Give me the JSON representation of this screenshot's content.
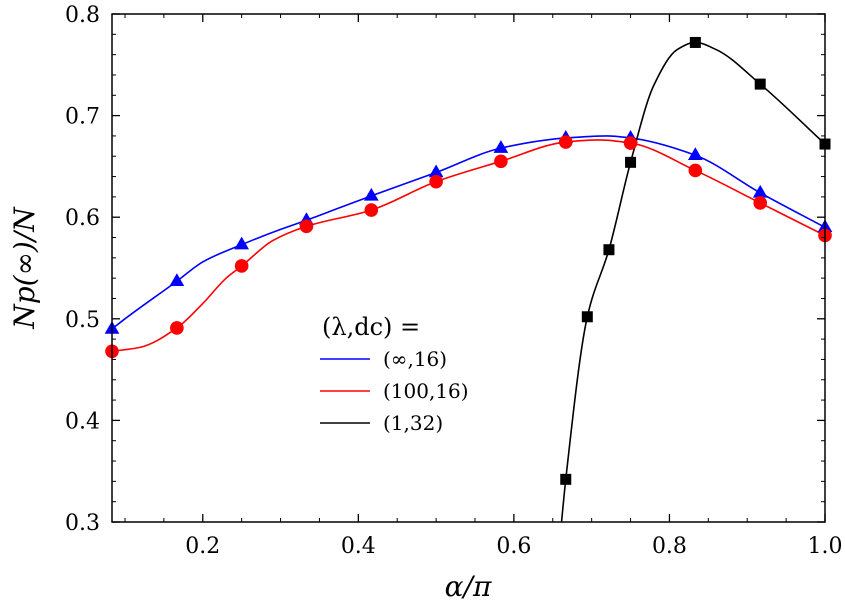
{
  "chart_data": {
    "type": "line",
    "title": "",
    "xlabel": "α/π",
    "ylabel": "Np(∞)/N",
    "xlim": [
      0.0833,
      1.0
    ],
    "ylim": [
      0.3,
      0.8
    ],
    "xticks": [
      0.2,
      0.4,
      0.6,
      0.8,
      1.0
    ],
    "xtick_labels": [
      "0.2",
      "0.4",
      "0.6",
      "0.8",
      "1.0"
    ],
    "yticks": [
      0.3,
      0.4,
      0.5,
      0.6,
      0.7,
      0.8
    ],
    "ytick_labels": [
      "0.3",
      "0.4",
      "0.5",
      "0.6",
      "0.7",
      "0.8"
    ],
    "legend": {
      "title": "(λ,dc) =",
      "placement": "center-left",
      "entries": [
        "(∞,16)",
        "(100,16)",
        "(1,32)"
      ]
    },
    "series": [
      {
        "name": "(∞,16)",
        "color": "#0000ff",
        "marker": "triangle",
        "x": [
          0.0833,
          0.1667,
          0.25,
          0.3333,
          0.4167,
          0.5,
          0.5833,
          0.6667,
          0.75,
          0.8333,
          0.9167,
          1.0
        ],
        "y": [
          0.49,
          0.537,
          0.573,
          0.597,
          0.621,
          0.644,
          0.668,
          0.678,
          0.678,
          0.661,
          0.624,
          0.59
        ],
        "curve_x": [
          0.0833,
          0.1,
          0.1667,
          0.2,
          0.25,
          0.3,
          0.3333,
          0.375,
          0.4167,
          0.5,
          0.5833,
          0.6667,
          0.72,
          0.75,
          0.8333,
          0.9167,
          1.0
        ],
        "curve_y": [
          0.49,
          0.5,
          0.537,
          0.556,
          0.573,
          0.588,
          0.597,
          0.609,
          0.621,
          0.644,
          0.668,
          0.678,
          0.68,
          0.678,
          0.661,
          0.624,
          0.59
        ]
      },
      {
        "name": "(100,16)",
        "color": "#ff0000",
        "marker": "circle",
        "x": [
          0.0833,
          0.1667,
          0.25,
          0.3333,
          0.4167,
          0.5,
          0.5833,
          0.6667,
          0.75,
          0.8333,
          0.9167,
          1.0
        ],
        "y": [
          0.468,
          0.491,
          0.552,
          0.591,
          0.607,
          0.635,
          0.655,
          0.674,
          0.673,
          0.646,
          0.614,
          0.582
        ],
        "curve_x": [
          0.0833,
          0.12,
          0.1667,
          0.2,
          0.23,
          0.25,
          0.29,
          0.3333,
          0.4167,
          0.5,
          0.5833,
          0.6667,
          0.71,
          0.75,
          0.8333,
          0.9167,
          1.0
        ],
        "curve_y": [
          0.468,
          0.472,
          0.491,
          0.515,
          0.54,
          0.552,
          0.577,
          0.591,
          0.607,
          0.635,
          0.655,
          0.674,
          0.676,
          0.673,
          0.646,
          0.614,
          0.582
        ]
      },
      {
        "name": "(1,32)",
        "color": "#000000",
        "marker": "square",
        "x": [
          0.6667,
          0.6944,
          0.7222,
          0.75,
          0.8333,
          0.9167,
          1.0
        ],
        "y": [
          0.342,
          0.502,
          0.568,
          0.654,
          0.772,
          0.731,
          0.672
        ],
        "curve_x": [
          0.66,
          0.6667,
          0.6944,
          0.7222,
          0.75,
          0.78,
          0.81,
          0.8333,
          0.86,
          0.9167,
          1.0
        ],
        "curve_y": [
          0.29,
          0.342,
          0.502,
          0.568,
          0.654,
          0.73,
          0.765,
          0.772,
          0.765,
          0.731,
          0.672
        ]
      }
    ]
  }
}
